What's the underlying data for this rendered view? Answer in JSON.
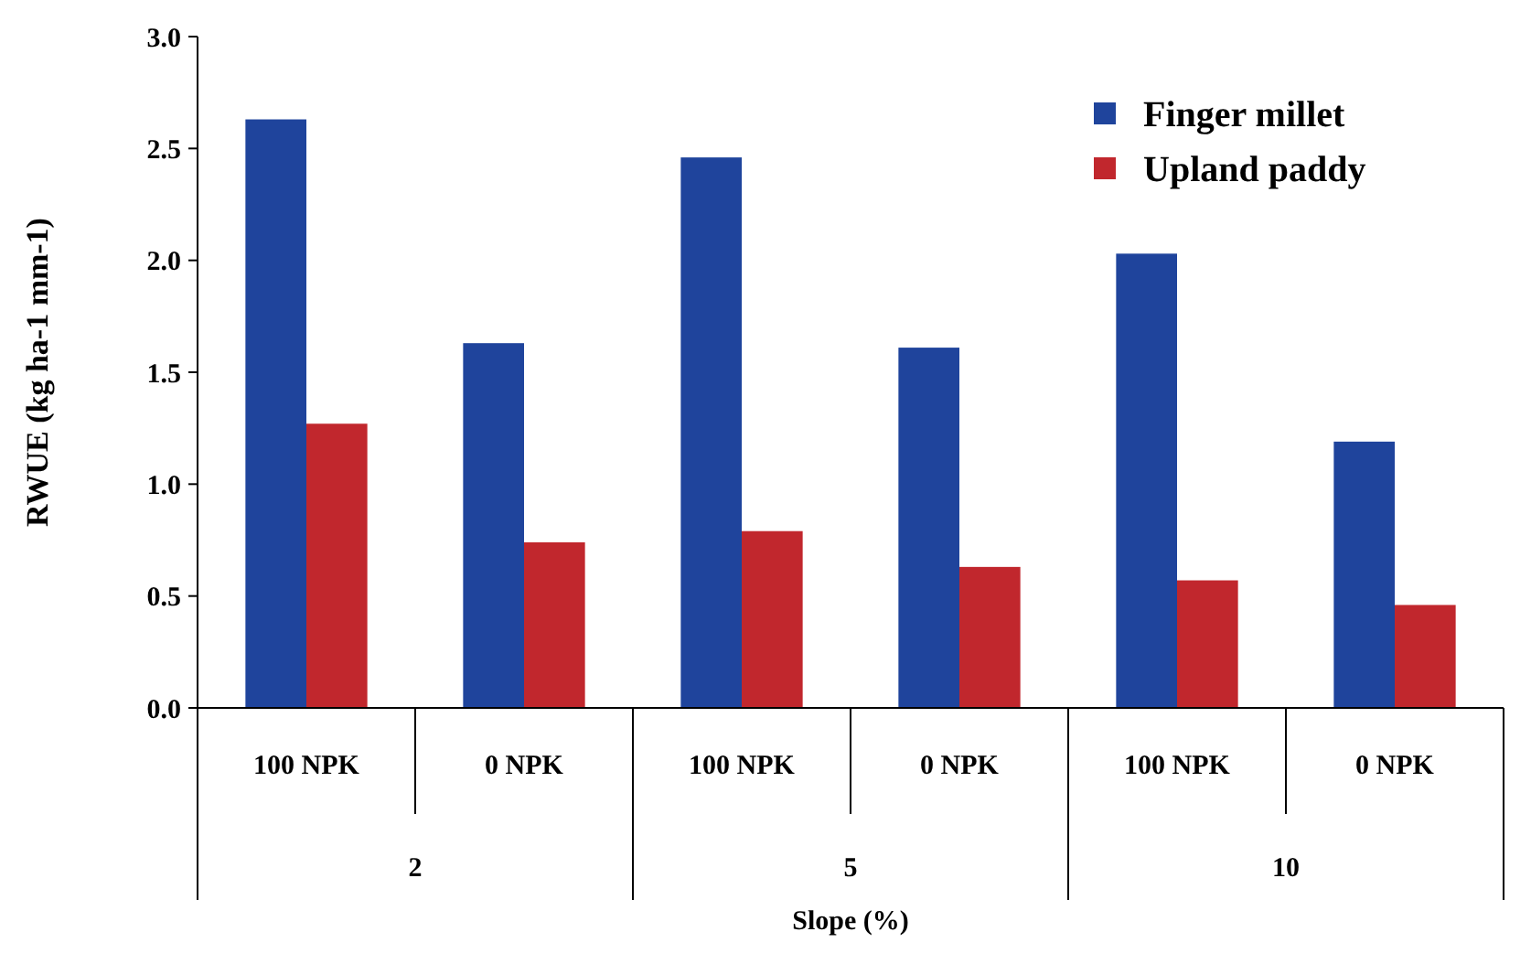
{
  "chart_data": {
    "type": "bar",
    "xlabel": "Slope (%)",
    "ylabel": "RWUE (kg ha-1 mm-1)",
    "categories": [
      "100 NPK",
      "0 NPK",
      "100 NPK",
      "0 NPK",
      "100 NPK",
      "0 NPK"
    ],
    "series": [
      {
        "name": "Finger millet",
        "color": "#1f449c",
        "values": [
          2.63,
          1.63,
          2.46,
          1.61,
          2.03,
          1.19
        ]
      },
      {
        "name": "Upland paddy",
        "color": "#c1272d",
        "values": [
          1.27,
          0.74,
          0.79,
          0.63,
          0.57,
          0.46
        ]
      }
    ],
    "annotations": [
      "2",
      "5",
      "10"
    ],
    "ylim": [
      0,
      3
    ],
    "yticks": [
      {
        "value": 0,
        "label": "0.0"
      },
      {
        "value": 0.5,
        "label": "0.5"
      },
      {
        "value": 1,
        "label": "1.0"
      },
      {
        "value": 1.5,
        "label": "1.5"
      },
      {
        "value": 2,
        "label": "2.0"
      },
      {
        "value": 2.5,
        "label": "2.5"
      },
      {
        "value": 3,
        "label": "3.0"
      }
    ],
    "grid": false,
    "legend": "top right"
  }
}
